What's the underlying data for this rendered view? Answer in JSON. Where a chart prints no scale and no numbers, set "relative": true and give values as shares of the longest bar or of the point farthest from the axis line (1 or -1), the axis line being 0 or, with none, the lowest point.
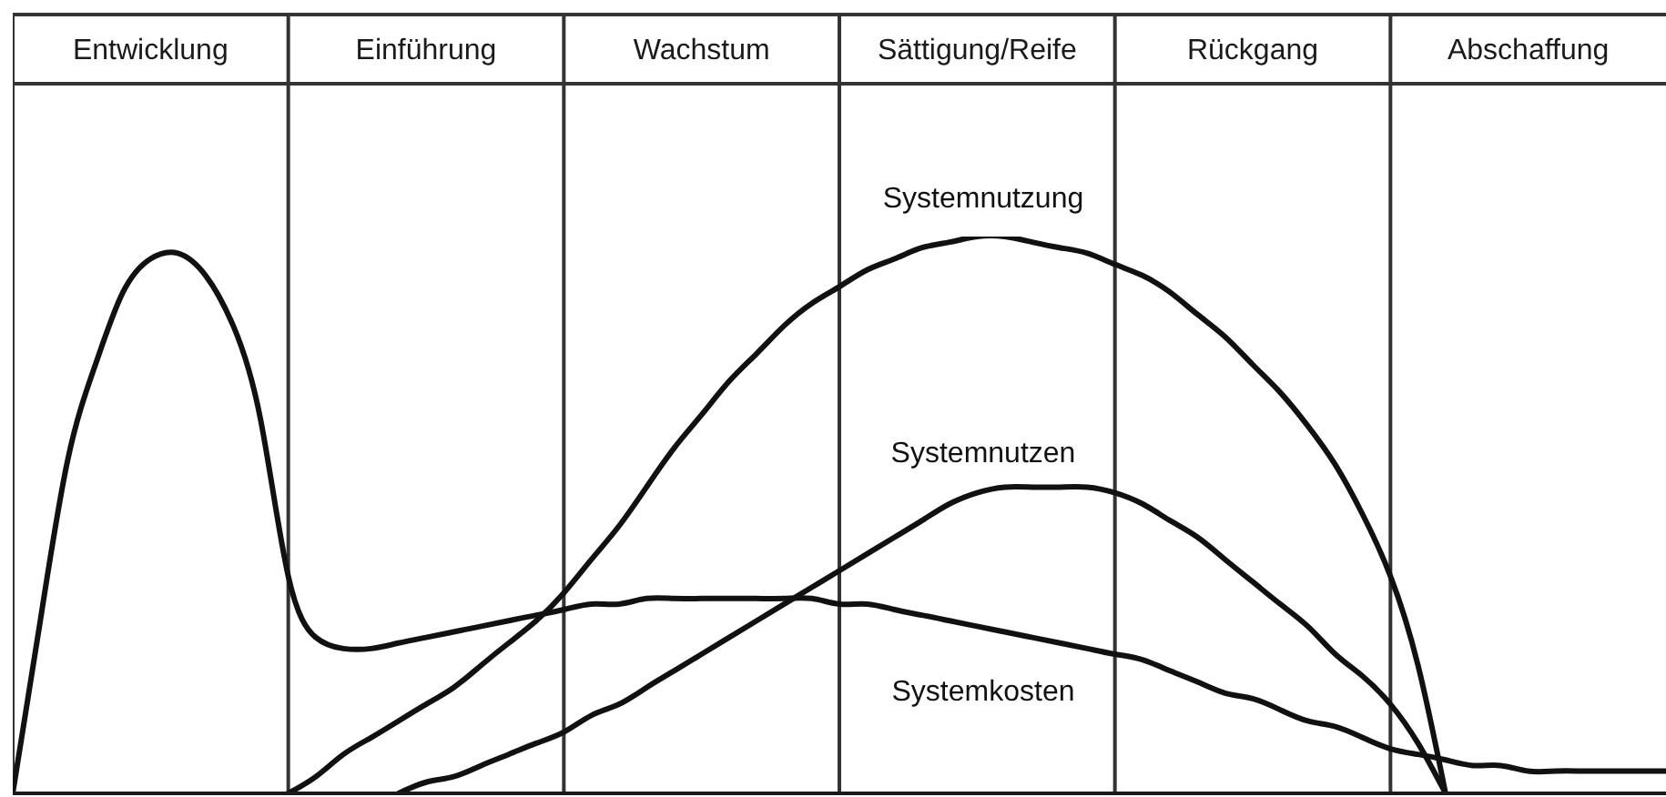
{
  "chart_data": {
    "type": "line",
    "relative": true,
    "categories": [
      null,
      null,
      null,
      null,
      null,
      "Entwicklung",
      null,
      null,
      null,
      null,
      null,
      null,
      null,
      null,
      null,
      "Einführung",
      null,
      null,
      null,
      null,
      null,
      null,
      null,
      null,
      null,
      "Wachstum",
      null,
      null,
      null,
      null,
      null,
      null,
      null,
      null,
      null,
      "Sättigung/Reife",
      null,
      null,
      null,
      null,
      null,
      null,
      null,
      null,
      null,
      "Rückgang",
      null,
      null,
      null,
      null,
      null,
      null,
      null,
      null,
      null,
      "Abschaffung",
      null,
      null,
      null,
      null,
      null
    ],
    "grid": "x",
    "series": [
      {
        "name": "Systemnutzung",
        "color": "#111111",
        "values": [
          null,
          null,
          null,
          null,
          null,
          null,
          null,
          null,
          null,
          null,
          0,
          0.03,
          0.07,
          0.1,
          0.13,
          0.16,
          0.19,
          0.23,
          0.27,
          0.31,
          0.36,
          0.42,
          0.48,
          0.55,
          0.62,
          0.68,
          0.74,
          0.79,
          0.84,
          0.88,
          0.91,
          0.94,
          0.96,
          0.98,
          0.99,
          1.0,
          1.0,
          0.99,
          0.98,
          0.97,
          0.95,
          0.93,
          0.9,
          0.86,
          0.82,
          0.77,
          0.72,
          0.66,
          0.59,
          0.5,
          0.39,
          0.23,
          0,
          null,
          null,
          null,
          null,
          null,
          null,
          null,
          null
        ]
      },
      {
        "name": "Systemnutzen",
        "color": "#111111",
        "values": [
          null,
          null,
          null,
          null,
          null,
          null,
          null,
          null,
          null,
          null,
          null,
          null,
          null,
          null,
          0,
          0.02,
          0.03,
          0.05,
          0.07,
          0.09,
          0.11,
          0.14,
          0.16,
          0.19,
          0.22,
          0.25,
          0.28,
          0.31,
          0.34,
          0.37,
          0.4,
          0.43,
          0.46,
          0.49,
          0.52,
          0.54,
          0.55,
          0.55,
          0.55,
          0.55,
          0.54,
          0.52,
          0.49,
          0.46,
          0.42,
          0.38,
          0.34,
          0.3,
          0.25,
          0.21,
          0.16,
          0.09,
          0,
          null,
          null,
          null,
          null,
          null,
          null,
          null,
          null
        ]
      },
      {
        "name": "Systemkosten",
        "color": "#111111",
        "values": [
          0,
          0.31,
          0.6,
          0.77,
          0.9,
          0.96,
          0.97,
          0.93,
          0.84,
          0.67,
          0.39,
          0.28,
          0.26,
          0.26,
          0.27,
          0.28,
          0.29,
          0.3,
          0.31,
          0.32,
          0.33,
          0.34,
          0.34,
          0.35,
          0.35,
          0.35,
          0.35,
          0.35,
          0.35,
          0.35,
          0.34,
          0.34,
          0.33,
          0.32,
          0.31,
          0.3,
          0.29,
          0.28,
          0.27,
          0.26,
          0.25,
          0.24,
          0.22,
          0.2,
          0.18,
          0.17,
          0.15,
          0.13,
          0.12,
          0.1,
          0.08,
          0.07,
          0.06,
          0.05,
          0.05,
          0.04,
          0.04,
          0.04,
          0.04,
          0.04,
          0.04
        ]
      }
    ]
  }
}
